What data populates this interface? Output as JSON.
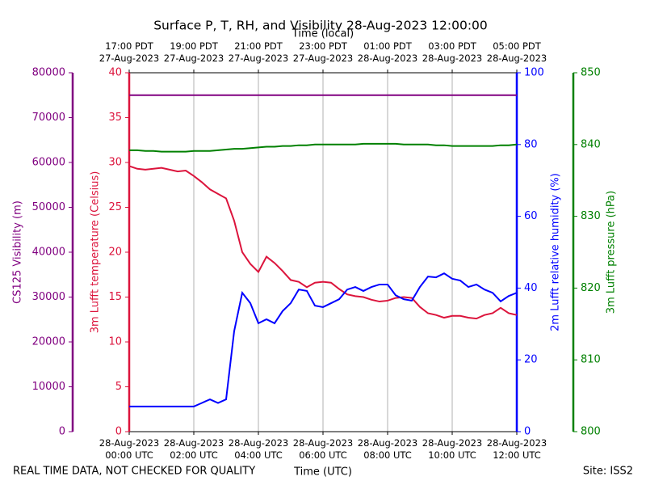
{
  "chart_data": {
    "type": "line",
    "title": "Surface P, T, RH, and Visibility 28-Aug-2023 12:00:00",
    "xlabel": "Time (UTC)",
    "x2label": "Time (local)",
    "footer_left": "REAL TIME DATA, NOT CHECKED FOR QUALITY",
    "footer_right": "Site: ISS2",
    "grid": true,
    "xlim": [
      "2023-08-28T00:00",
      "2023-08-28T12:00"
    ],
    "xticks": [
      {
        "value": "2023-08-28T00:00",
        "label": "28-Aug-2023\n00:00 UTC"
      },
      {
        "value": "2023-08-28T02:00",
        "label": "28-Aug-2023\n02:00 UTC"
      },
      {
        "value": "2023-08-28T04:00",
        "label": "28-Aug-2023\n04:00 UTC"
      },
      {
        "value": "2023-08-28T06:00",
        "label": "28-Aug-2023\n06:00 UTC"
      },
      {
        "value": "2023-08-28T08:00",
        "label": "28-Aug-2023\n08:00 UTC"
      },
      {
        "value": "2023-08-28T10:00",
        "label": "28-Aug-2023\n10:00 UTC"
      },
      {
        "value": "2023-08-28T12:00",
        "label": "28-Aug-2023\n12:00 UTC"
      }
    ],
    "x2ticks": [
      {
        "value": "2023-08-28T00:00",
        "label": "17:00 PDT\n27-Aug-2023"
      },
      {
        "value": "2023-08-28T02:00",
        "label": "19:00 PDT\n27-Aug-2023"
      },
      {
        "value": "2023-08-28T04:00",
        "label": "21:00 PDT\n27-Aug-2023"
      },
      {
        "value": "2023-08-28T06:00",
        "label": "23:00 PDT\n27-Aug-2023"
      },
      {
        "value": "2023-08-28T08:00",
        "label": "01:00 PDT\n28-Aug-2023"
      },
      {
        "value": "2023-08-28T10:00",
        "label": "03:00 PDT\n28-Aug-2023"
      },
      {
        "value": "2023-08-28T12:00",
        "label": "05:00 PDT\n28-Aug-2023"
      }
    ],
    "ylabel": "CS125 Visibility (m)",
    "ylim": [
      0,
      80000
    ],
    "yticks": [
      0,
      10000,
      20000,
      30000,
      40000,
      50000,
      60000,
      70000,
      80000
    ],
    "y2label": "3m Lufft temperature (Celsius)",
    "y2lim": [
      0,
      40
    ],
    "y2ticks": [
      0,
      5,
      10,
      15,
      20,
      25,
      30,
      35,
      40
    ],
    "y3label": "2m Lufft relative humidity (%)",
    "y3lim": [
      0,
      100
    ],
    "y3ticks": [
      0,
      20,
      40,
      60,
      80,
      100
    ],
    "y4label": "3m Lufft pressure (hPa)",
    "y4lim": [
      800,
      850
    ],
    "y4ticks": [
      800,
      810,
      820,
      830,
      840,
      850
    ],
    "x": [
      "2023-08-28T00:00",
      "2023-08-28T00:15",
      "2023-08-28T00:30",
      "2023-08-28T00:45",
      "2023-08-28T01:00",
      "2023-08-28T01:15",
      "2023-08-28T01:30",
      "2023-08-28T01:45",
      "2023-08-28T02:00",
      "2023-08-28T02:15",
      "2023-08-28T02:30",
      "2023-08-28T02:45",
      "2023-08-28T03:00",
      "2023-08-28T03:15",
      "2023-08-28T03:30",
      "2023-08-28T03:45",
      "2023-08-28T04:00",
      "2023-08-28T04:15",
      "2023-08-28T04:30",
      "2023-08-28T04:45",
      "2023-08-28T05:00",
      "2023-08-28T05:15",
      "2023-08-28T05:30",
      "2023-08-28T05:45",
      "2023-08-28T06:00",
      "2023-08-28T06:15",
      "2023-08-28T06:30",
      "2023-08-28T06:45",
      "2023-08-28T07:00",
      "2023-08-28T07:15",
      "2023-08-28T07:30",
      "2023-08-28T07:45",
      "2023-08-28T08:00",
      "2023-08-28T08:15",
      "2023-08-28T08:30",
      "2023-08-28T08:45",
      "2023-08-28T09:00",
      "2023-08-28T09:15",
      "2023-08-28T09:30",
      "2023-08-28T09:45",
      "2023-08-28T10:00",
      "2023-08-28T10:15",
      "2023-08-28T10:30",
      "2023-08-28T10:45",
      "2023-08-28T11:00",
      "2023-08-28T11:15",
      "2023-08-28T11:30",
      "2023-08-28T11:45",
      "2023-08-28T12:00"
    ],
    "series": [
      {
        "name": "CS125 Visibility",
        "axis": "y",
        "color": "#800080",
        "values": [
          75000,
          75000,
          75000,
          75000,
          75000,
          75000,
          75000,
          75000,
          75000,
          75000,
          75000,
          75000,
          75000,
          75000,
          75000,
          75000,
          75000,
          75000,
          75000,
          75000,
          75000,
          75000,
          75000,
          75000,
          75000,
          75000,
          75000,
          75000,
          75000,
          75000,
          75000,
          75000,
          75000,
          75000,
          75000,
          75000,
          75000,
          75000,
          75000,
          75000,
          75000,
          75000,
          75000,
          75000,
          75000,
          75000,
          75000,
          75000,
          75000
        ]
      },
      {
        "name": "3m Lufft temperature",
        "axis": "y2",
        "color": "#dc143c",
        "values": [
          29.6,
          29.3,
          29.2,
          29.3,
          29.4,
          29.2,
          29.0,
          29.1,
          28.5,
          27.8,
          27.0,
          26.5,
          26.0,
          23.5,
          20.0,
          18.7,
          17.8,
          19.5,
          18.8,
          17.9,
          16.9,
          16.7,
          16.1,
          16.6,
          16.7,
          16.6,
          15.9,
          15.3,
          15.1,
          15.0,
          14.7,
          14.5,
          14.6,
          14.9,
          15.0,
          14.9,
          13.9,
          13.2,
          13.0,
          12.7,
          12.9,
          12.9,
          12.7,
          12.6,
          13.0,
          13.2,
          13.8,
          13.2,
          13.0
        ]
      },
      {
        "name": "2m Lufft relative humidity",
        "axis": "y3",
        "color": "#0000ff",
        "values": [
          7,
          7,
          7,
          7,
          7,
          7,
          7,
          7,
          7,
          8,
          9,
          8,
          9,
          28,
          38.7,
          35.8,
          30.2,
          31.3,
          30.2,
          33.6,
          35.8,
          39.6,
          39.2,
          35.1,
          34.7,
          35.8,
          36.9,
          39.6,
          40.3,
          39.2,
          40.3,
          41,
          41,
          38,
          36.9,
          36.5,
          40.3,
          43.2,
          43,
          44.1,
          42.6,
          42.1,
          40.3,
          41,
          39.6,
          38.7,
          36.3,
          37.8,
          38.7
        ]
      },
      {
        "name": "3m Lufft pressure",
        "axis": "y4",
        "color": "#008000",
        "values": [
          839.2,
          839.2,
          839.1,
          839.1,
          839.0,
          839.0,
          839.0,
          839.0,
          839.1,
          839.1,
          839.1,
          839.2,
          839.3,
          839.4,
          839.4,
          839.5,
          839.6,
          839.7,
          839.7,
          839.8,
          839.8,
          839.9,
          839.9,
          840.0,
          840.0,
          840.0,
          840.0,
          840.0,
          840.0,
          840.1,
          840.1,
          840.1,
          840.1,
          840.1,
          840.0,
          840.0,
          840.0,
          840.0,
          839.9,
          839.9,
          839.8,
          839.8,
          839.8,
          839.8,
          839.8,
          839.8,
          839.9,
          839.9,
          840.0
        ]
      }
    ]
  }
}
